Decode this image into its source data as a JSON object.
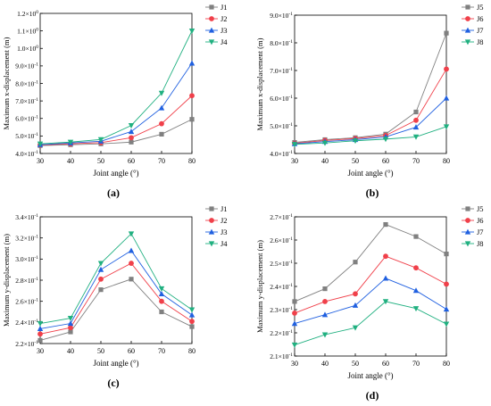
{
  "series_colors": [
    "#808080",
    "#f0404a",
    "#2060e0",
    "#20b080"
  ],
  "series_markers": [
    "square",
    "circle",
    "triangle-up",
    "triangle-down"
  ],
  "chart_data": [
    {
      "type": "line",
      "panel_label": "(a)",
      "xlabel": "Joint angle (°)",
      "ylabel": "Maximum x-displacement (m)",
      "x": [
        30,
        40,
        50,
        60,
        70,
        80
      ],
      "xlim": [
        30,
        80
      ],
      "ylim": [
        0.4,
        1.2
      ],
      "ticks": [
        {
          "v": 0.4,
          "m": "4.0",
          "e": "-1"
        },
        {
          "v": 0.5,
          "m": "5.0",
          "e": "-1"
        },
        {
          "v": 0.6,
          "m": "6.0",
          "e": "-1"
        },
        {
          "v": 0.7,
          "m": "7.0",
          "e": "-1"
        },
        {
          "v": 0.8,
          "m": "8.0",
          "e": "-1"
        },
        {
          "v": 0.9,
          "m": "9.0",
          "e": "-1"
        },
        {
          "v": 1.0,
          "m": "1.0",
          "e": "0"
        },
        {
          "v": 1.1,
          "m": "1.1",
          "e": "0"
        },
        {
          "v": 1.2,
          "m": "1.2",
          "e": "0"
        }
      ],
      "legend_position": "top-right",
      "grid": false,
      "series": [
        {
          "name": "J1",
          "values": [
            0.445,
            0.45,
            0.455,
            0.465,
            0.51,
            0.595
          ]
        },
        {
          "name": "J2",
          "values": [
            0.448,
            0.455,
            0.462,
            0.49,
            0.57,
            0.73
          ]
        },
        {
          "name": "J3",
          "values": [
            0.45,
            0.46,
            0.47,
            0.525,
            0.66,
            0.915
          ]
        },
        {
          "name": "J4",
          "values": [
            0.455,
            0.465,
            0.48,
            0.56,
            0.745,
            1.1
          ]
        }
      ]
    },
    {
      "type": "line",
      "panel_label": "(b)",
      "xlabel": "Joint angle (°)",
      "ylabel": "Maximum x-displacement (m)",
      "x": [
        30,
        40,
        50,
        60,
        70,
        80
      ],
      "xlim": [
        30,
        80
      ],
      "ylim": [
        0.4,
        0.9
      ],
      "ticks": [
        {
          "v": 0.4,
          "m": "4.0",
          "e": "-1"
        },
        {
          "v": 0.5,
          "m": "5.0",
          "e": "-1"
        },
        {
          "v": 0.6,
          "m": "6.0",
          "e": "-1"
        },
        {
          "v": 0.7,
          "m": "7.0",
          "e": "-1"
        },
        {
          "v": 0.8,
          "m": "8.0",
          "e": "-1"
        },
        {
          "v": 0.9,
          "m": "9.0",
          "e": "-1"
        }
      ],
      "legend_position": "top-right",
      "grid": false,
      "series": [
        {
          "name": "J5",
          "values": [
            0.44,
            0.45,
            0.457,
            0.47,
            0.55,
            0.835
          ]
        },
        {
          "name": "J6",
          "values": [
            0.437,
            0.447,
            0.454,
            0.465,
            0.52,
            0.705
          ]
        },
        {
          "name": "J7",
          "values": [
            0.435,
            0.443,
            0.45,
            0.46,
            0.495,
            0.6
          ]
        },
        {
          "name": "J8",
          "values": [
            0.433,
            0.438,
            0.446,
            0.452,
            0.46,
            0.497
          ]
        }
      ]
    },
    {
      "type": "line",
      "panel_label": "(c)",
      "xlabel": "Joint angle (°)",
      "ylabel": "Maximum y-displacement (m)",
      "x": [
        30,
        40,
        50,
        60,
        70,
        80
      ],
      "xlim": [
        30,
        80
      ],
      "ylim": [
        0.22,
        0.34
      ],
      "ticks": [
        {
          "v": 0.22,
          "m": "2.2",
          "e": "-1"
        },
        {
          "v": 0.24,
          "m": "2.4",
          "e": "-1"
        },
        {
          "v": 0.26,
          "m": "2.6",
          "e": "-1"
        },
        {
          "v": 0.28,
          "m": "2.8",
          "e": "-1"
        },
        {
          "v": 0.3,
          "m": "3.0",
          "e": "-1"
        },
        {
          "v": 0.32,
          "m": "3.2",
          "e": "-1"
        },
        {
          "v": 0.34,
          "m": "3.4",
          "e": "-1"
        }
      ],
      "legend_position": "top-right",
      "grid": false,
      "series": [
        {
          "name": "J1",
          "values": [
            0.223,
            0.231,
            0.271,
            0.281,
            0.25,
            0.236
          ]
        },
        {
          "name": "J2",
          "values": [
            0.229,
            0.235,
            0.281,
            0.296,
            0.26,
            0.241
          ]
        },
        {
          "name": "J3",
          "values": [
            0.234,
            0.239,
            0.29,
            0.308,
            0.267,
            0.247
          ]
        },
        {
          "name": "J4",
          "values": [
            0.239,
            0.244,
            0.296,
            0.324,
            0.272,
            0.252
          ]
        }
      ]
    },
    {
      "type": "line",
      "panel_label": "(d)",
      "xlabel": "Joint angle (°)",
      "ylabel": "Maximum y-displacement (m)",
      "x": [
        30,
        40,
        50,
        60,
        70,
        80
      ],
      "xlim": [
        30,
        80
      ],
      "ylim": [
        0.21,
        0.27
      ],
      "ticks": [
        {
          "v": 0.21,
          "m": "2.1",
          "e": "-1"
        },
        {
          "v": 0.22,
          "m": "2.2",
          "e": "-1"
        },
        {
          "v": 0.23,
          "m": "2.3",
          "e": "-1"
        },
        {
          "v": 0.24,
          "m": "2.4",
          "e": "-1"
        },
        {
          "v": 0.25,
          "m": "2.5",
          "e": "-1"
        },
        {
          "v": 0.26,
          "m": "2.6",
          "e": "-1"
        },
        {
          "v": 0.27,
          "m": "2.7",
          "e": "-1"
        }
      ],
      "legend_position": "top-right",
      "grid": false,
      "series": [
        {
          "name": "J5",
          "values": [
            0.2335,
            0.239,
            0.2505,
            0.2667,
            0.2615,
            0.254
          ]
        },
        {
          "name": "J6",
          "values": [
            0.2285,
            0.2335,
            0.2368,
            0.253,
            0.248,
            0.241
          ]
        },
        {
          "name": "J7",
          "values": [
            0.224,
            0.2278,
            0.2318,
            0.2435,
            0.2382,
            0.2302
          ]
        },
        {
          "name": "J8",
          "values": [
            0.2148,
            0.2192,
            0.2222,
            0.2335,
            0.2305,
            0.2238
          ]
        }
      ]
    }
  ]
}
